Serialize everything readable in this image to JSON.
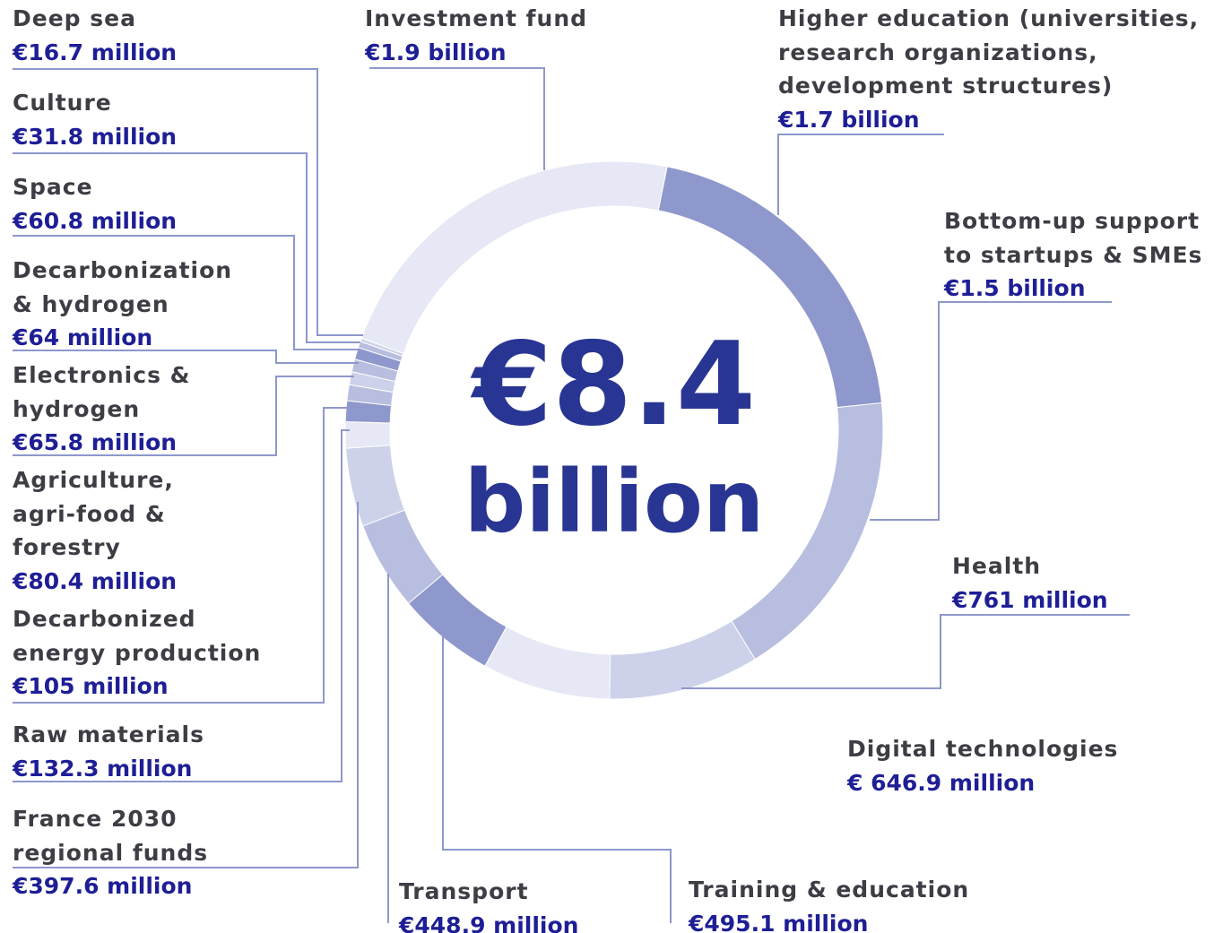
{
  "chart_data": {
    "type": "donut",
    "center_value": "€8.4",
    "center_unit": "billion",
    "categories": [
      "Investment fund",
      "Higher education (universities, research organizations, development structures)",
      "Bottom-up support to startups & SMEs",
      "Health",
      "Digital technologies",
      "Training & education",
      "Transport",
      "France 2030 regional funds",
      "Raw materials",
      "Decarbonized energy production",
      "Agriculture, agri-food & forestry",
      "Electronics & hydrogen",
      "Decarbonization & hydrogen",
      "Space",
      "Culture",
      "Deep sea"
    ],
    "values": [
      1900,
      1700,
      1500,
      761,
      646.9,
      495.1,
      448.9,
      397.6,
      132.3,
      105,
      80.4,
      65.8,
      64,
      60.8,
      31.8,
      16.7
    ],
    "value_labels": [
      "€1.9 billion",
      "€1.7 billion",
      "€1.5 billion",
      "€761 million",
      "€ 646.9 million",
      "€495.1 million",
      "€448.9 million",
      "€397.6 million",
      "€132.3 million",
      "€105 million",
      "€80.4 million",
      "€65.8 million",
      "€64 million",
      "€60.8 million",
      "€31.8 million",
      "€16.7 million"
    ],
    "colors": [
      "#e6e8f5",
      "#8e98cc",
      "#b8bedf",
      "#cdd2ea",
      "#e6e8f5",
      "#8e98cc",
      "#b8bedf",
      "#cdd2ea",
      "#e6e8f5",
      "#8e98cc",
      "#b8bedf",
      "#cdd2ea",
      "#b8bedf",
      "#8e98cc",
      "#b8bedf",
      "#cdd2ea"
    ]
  }
}
